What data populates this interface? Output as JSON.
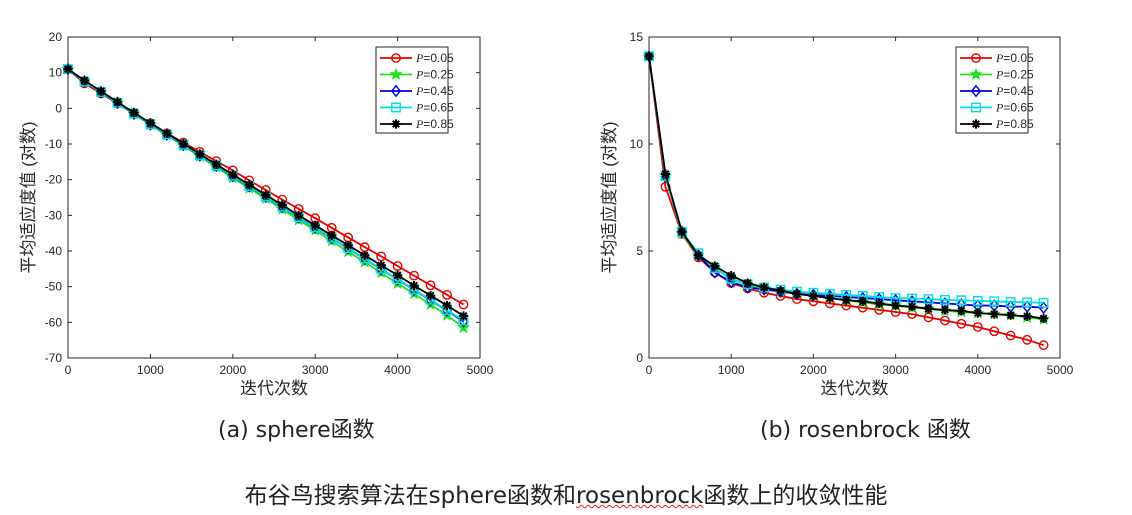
{
  "caption": {
    "part1": "布谷鸟搜索算法在sphere函数和",
    "part2": "rosenbrock",
    "part3": "函数上的收敛性能"
  },
  "legend_prefix": "P",
  "chart_data": [
    {
      "type": "line",
      "subcaption": "(a) sphere函数",
      "xlabel": "迭代次数",
      "ylabel": "平均适应度值 (对数)",
      "xlim": [
        0,
        5000
      ],
      "ylim": [
        -70,
        20
      ],
      "xticks": [
        0,
        1000,
        2000,
        3000,
        4000,
        5000
      ],
      "yticks": [
        -70,
        -60,
        -50,
        -40,
        -30,
        -20,
        -10,
        0,
        10,
        20
      ],
      "legend_position": "top-right",
      "x": [
        0,
        200,
        400,
        600,
        800,
        1000,
        1200,
        1400,
        1600,
        1800,
        2000,
        2200,
        2400,
        2600,
        2800,
        3000,
        3200,
        3400,
        3600,
        3800,
        4000,
        4200,
        4400,
        4600,
        4800
      ],
      "series": [
        {
          "name": "=0.05",
          "color": "#e60000",
          "marker": "circle",
          "values": [
            11,
            7,
            4.2,
            1.4,
            -1.5,
            -4.2,
            -7,
            -9.6,
            -12.2,
            -14.8,
            -17.4,
            -20.2,
            -22.9,
            -25.6,
            -28.2,
            -30.8,
            -33.5,
            -36.2,
            -38.9,
            -41.5,
            -44.2,
            -46.9,
            -49.6,
            -52.3,
            -55
          ]
        },
        {
          "name": "=0.25",
          "color": "#1fe01f",
          "marker": "star",
          "values": [
            11,
            7.5,
            4.5,
            1.5,
            -1.6,
            -4.6,
            -7.5,
            -10.5,
            -13.5,
            -16.5,
            -19.5,
            -22.4,
            -25.3,
            -28.3,
            -31.3,
            -34.2,
            -37.2,
            -40.2,
            -43.1,
            -46.1,
            -49.1,
            -52,
            -55,
            -58,
            -61.5
          ]
        },
        {
          "name": "=0.45",
          "color": "#0000e0",
          "marker": "diamond",
          "values": [
            11,
            7.5,
            4.5,
            1.5,
            -1.5,
            -4.5,
            -7.4,
            -10.3,
            -13.2,
            -16.1,
            -19,
            -21.9,
            -24.8,
            -27.7,
            -30.6,
            -33.5,
            -36.4,
            -39.3,
            -42.2,
            -45.1,
            -48,
            -50.9,
            -53.8,
            -56.7,
            -59.8
          ]
        },
        {
          "name": "=0.65",
          "color": "#00e0e0",
          "marker": "square",
          "values": [
            11,
            7.5,
            4.6,
            1.6,
            -1.4,
            -4.4,
            -7.3,
            -10.2,
            -13.1,
            -16,
            -18.9,
            -21.8,
            -24.7,
            -27.6,
            -30.5,
            -33.4,
            -36.3,
            -39.2,
            -42.1,
            -45,
            -47.9,
            -50.8,
            -53.7,
            -56.6,
            -59.5
          ]
        },
        {
          "name": "=0.85",
          "color": "#000000",
          "marker": "asterisk",
          "values": [
            11,
            7.8,
            4.8,
            1.8,
            -1.2,
            -4.1,
            -7,
            -9.9,
            -12.8,
            -15.7,
            -18.6,
            -21.4,
            -24.3,
            -27.1,
            -30,
            -32.8,
            -35.6,
            -38.4,
            -41.2,
            -44,
            -46.8,
            -49.7,
            -52.5,
            -55.3,
            -58.2
          ]
        }
      ]
    },
    {
      "type": "line",
      "subcaption": "(b) rosenbrock 函数",
      "xlabel": "迭代次数",
      "ylabel": "平均适应度值 (对数)",
      "xlim": [
        0,
        5000
      ],
      "ylim": [
        0,
        15
      ],
      "xticks": [
        0,
        1000,
        2000,
        3000,
        4000,
        5000
      ],
      "yticks": [
        0,
        5,
        10,
        15
      ],
      "legend_position": "top-right",
      "x": [
        0,
        200,
        400,
        600,
        800,
        1000,
        1200,
        1400,
        1600,
        1800,
        2000,
        2200,
        2400,
        2600,
        2800,
        3000,
        3200,
        3400,
        3600,
        3800,
        4000,
        4200,
        4400,
        4600,
        4800
      ],
      "series": [
        {
          "name": "=0.05",
          "color": "#e60000",
          "marker": "circle",
          "values": [
            14.1,
            8.0,
            5.8,
            4.7,
            4.0,
            3.5,
            3.25,
            3.05,
            2.9,
            2.75,
            2.65,
            2.55,
            2.45,
            2.35,
            2.25,
            2.15,
            2.05,
            1.9,
            1.75,
            1.6,
            1.45,
            1.25,
            1.05,
            0.85,
            0.6
          ]
        },
        {
          "name": "=0.25",
          "color": "#1fe01f",
          "marker": "star",
          "values": [
            14.1,
            8.5,
            5.8,
            4.8,
            4.2,
            3.7,
            3.4,
            3.25,
            3.1,
            3.0,
            2.9,
            2.8,
            2.7,
            2.6,
            2.5,
            2.45,
            2.35,
            2.3,
            2.2,
            2.15,
            2.1,
            2.05,
            2.0,
            1.9,
            1.8
          ]
        },
        {
          "name": "=0.45",
          "color": "#0000e0",
          "marker": "diamond",
          "values": [
            14.1,
            8.5,
            5.9,
            4.8,
            4.0,
            3.55,
            3.3,
            3.2,
            3.1,
            3.0,
            2.95,
            2.9,
            2.85,
            2.8,
            2.75,
            2.7,
            2.65,
            2.6,
            2.55,
            2.5,
            2.45,
            2.45,
            2.4,
            2.4,
            2.35
          ]
        },
        {
          "name": "=0.65",
          "color": "#00e0e0",
          "marker": "square",
          "values": [
            14.1,
            8.5,
            5.9,
            4.9,
            4.2,
            3.7,
            3.45,
            3.3,
            3.2,
            3.1,
            3.05,
            3.0,
            2.95,
            2.9,
            2.85,
            2.8,
            2.78,
            2.75,
            2.72,
            2.7,
            2.67,
            2.65,
            2.62,
            2.6,
            2.58
          ]
        },
        {
          "name": "=0.85",
          "color": "#000000",
          "marker": "asterisk",
          "values": [
            14.1,
            8.6,
            5.9,
            4.8,
            4.3,
            3.85,
            3.5,
            3.3,
            3.15,
            3.0,
            2.9,
            2.8,
            2.7,
            2.65,
            2.55,
            2.45,
            2.4,
            2.3,
            2.25,
            2.2,
            2.1,
            2.05,
            2.0,
            1.95,
            1.85
          ]
        }
      ]
    }
  ]
}
